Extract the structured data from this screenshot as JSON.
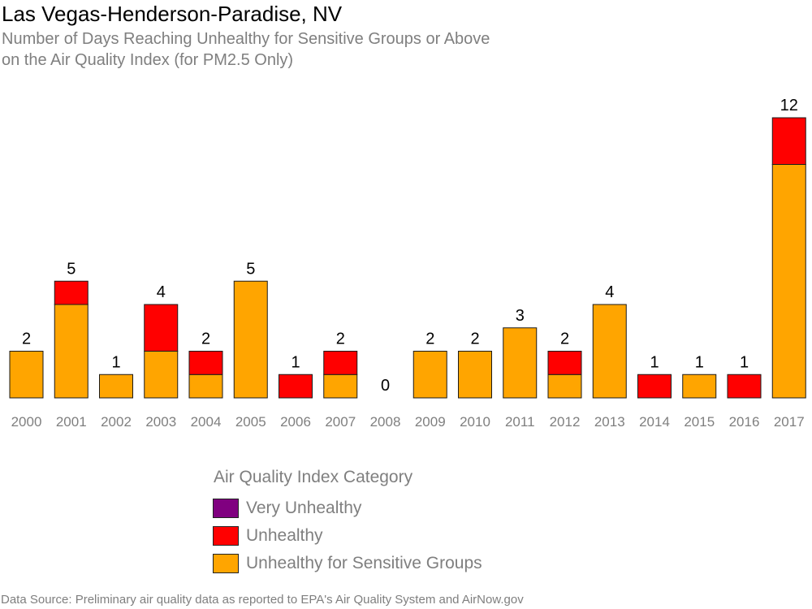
{
  "chart_data": {
    "type": "bar",
    "stacked": true,
    "title": "Las Vegas-Henderson-Paradise, NV",
    "subtitle": [
      "Number of Days Reaching Unhealthy for Sensitive Groups or Above",
      "on the Air Quality Index (for PM2.5 Only)"
    ],
    "categories": [
      "2000",
      "2001",
      "2002",
      "2003",
      "2004",
      "2005",
      "2006",
      "2007",
      "2008",
      "2009",
      "2010",
      "2011",
      "2012",
      "2013",
      "2014",
      "2015",
      "2016",
      "2017"
    ],
    "series": [
      {
        "name": "Unhealthy for Sensitive Groups",
        "color": "#FFA500",
        "values": [
          2,
          4,
          1,
          2,
          1,
          5,
          0,
          1,
          0,
          2,
          2,
          3,
          1,
          4,
          0,
          1,
          0,
          10
        ]
      },
      {
        "name": "Unhealthy",
        "color": "#FF0000",
        "values": [
          0,
          1,
          0,
          2,
          1,
          0,
          1,
          1,
          0,
          0,
          0,
          0,
          1,
          0,
          1,
          0,
          1,
          2
        ]
      },
      {
        "name": "Very Unhealthy",
        "color": "#800080",
        "values": [
          0,
          0,
          0,
          0,
          0,
          0,
          0,
          0,
          0,
          0,
          0,
          0,
          0,
          0,
          0,
          0,
          0,
          0
        ]
      }
    ],
    "totals": [
      "2",
      "5",
      "1",
      "4",
      "2",
      "5",
      "1",
      "2",
      "0",
      "2",
      "2",
      "3",
      "2",
      "4",
      "1",
      "1",
      "1",
      "12"
    ],
    "ylim": [
      0,
      12
    ],
    "grid": false,
    "legend_title": "Air Quality Index Category",
    "legend_order": [
      "Very Unhealthy",
      "Unhealthy",
      "Unhealthy for Sensitive Groups"
    ],
    "legend_position": "bottom",
    "source": "Data Source: Preliminary air quality data as reported to EPA's Air Quality System and AirNow.gov"
  }
}
